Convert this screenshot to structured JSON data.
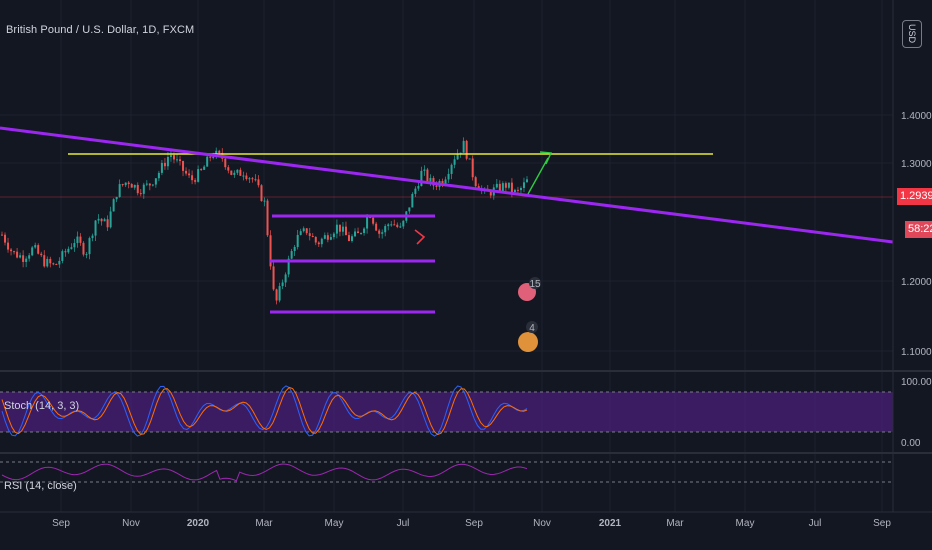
{
  "header": {
    "title": "British Pound / U.S. Dollar, 1D, FXCM",
    "currency": "USD"
  },
  "price_tags": {
    "last": "1.29390",
    "countdown": "58:22"
  },
  "oscillators": {
    "stoch_label": "Stoch (14, 3, 3)",
    "stoch_ticks": [
      "100.00",
      "0.00"
    ],
    "rsi_label": "RSI (14, close)"
  },
  "badges": [
    "15",
    "4"
  ],
  "chart_data": [
    {
      "type": "line",
      "title": "British Pound / U.S. Dollar, 1D, FXCM",
      "x_tick_labels": [
        "Sep",
        "Nov",
        "2020",
        "Mar",
        "May",
        "Jul",
        "Sep",
        "Nov",
        "2021",
        "Mar",
        "May",
        "Jul",
        "Sep"
      ],
      "y_tick_labels": [
        "1.40000",
        "1.30000",
        "1.20000",
        "1.10000"
      ],
      "ylim": [
        1.09,
        1.5
      ],
      "series": [
        {
          "values": [
            1.24,
            1.22,
            1.215,
            1.225,
            1.21,
            1.205,
            1.22,
            1.235,
            1.22,
            1.26,
            1.25,
            1.29,
            1.3,
            1.29,
            1.295,
            1.31,
            1.33,
            1.315,
            1.3,
            1.31,
            1.33,
            1.325,
            1.305,
            1.31,
            1.3,
            1.275,
            1.16,
            1.2,
            1.235,
            1.245,
            1.23,
            1.24,
            1.25,
            1.235,
            1.24,
            1.265,
            1.24,
            1.255,
            1.245,
            1.28,
            1.31,
            1.295,
            1.3,
            1.325,
            1.34,
            1.3,
            1.285,
            1.29,
            1.295,
            1.285,
            1.299
          ]
        }
      ],
      "horizontal_lines": [
        {
          "y": 1.346,
          "color": "#e8e83a"
        },
        {
          "y": 1.27,
          "color": "#9c27f0"
        },
        {
          "y": 1.211,
          "color": "#9c27f0"
        },
        {
          "y": 1.148,
          "color": "#9c27f0"
        }
      ],
      "trendline_color": "#9c27f0",
      "last_price": 1.2939
    }
  ]
}
